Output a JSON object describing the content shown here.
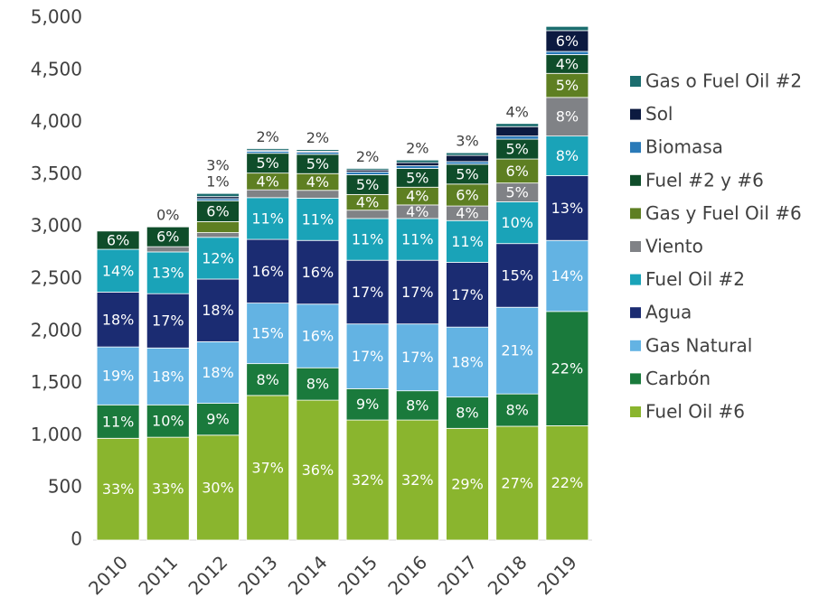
{
  "chart_data": {
    "type": "stacked_bar",
    "categories": [
      "2010",
      "2011",
      "2012",
      "2013",
      "2014",
      "2015",
      "2016",
      "2017",
      "2018",
      "2019"
    ],
    "ylim": [
      0,
      5000
    ],
    "yticks": [
      0,
      500,
      {
        "value": 1000,
        "label": "1,000"
      },
      {
        "value": 1500,
        "label": "1,500"
      },
      {
        "value": 2000,
        "label": "2,000"
      },
      {
        "value": 2500,
        "label": "2,500"
      },
      {
        "value": 3000,
        "label": "3,000"
      },
      {
        "value": 3500,
        "label": "3,500"
      },
      {
        "value": 4000,
        "label": "4,000"
      },
      {
        "value": 4500,
        "label": "4,500"
      },
      {
        "value": 5000,
        "label": "5,000"
      }
    ],
    "grid": false,
    "legend": "right",
    "series": [
      {
        "name": "Fuel Oil #6",
        "color": "#8ab52e",
        "values": [
          975,
          985,
          1005,
          1385,
          1340,
          1150,
          1150,
          1070,
          1090,
          1095
        ],
        "share_labels": [
          "33%",
          "33%",
          "30%",
          "37%",
          "36%",
          "32%",
          "32%",
          "29%",
          "27%",
          "22%"
        ]
      },
      {
        "name": "Carbón",
        "color": "#1a7a3c",
        "values": [
          320,
          310,
          305,
          305,
          310,
          300,
          280,
          300,
          310,
          1095
        ],
        "share_labels": [
          "11%",
          "10%",
          "9%",
          "8%",
          "8%",
          "9%",
          "8%",
          "8%",
          "8%",
          "22%"
        ]
      },
      {
        "name": "Gas Natural",
        "color": "#63b3e3",
        "values": [
          555,
          545,
          590,
          580,
          610,
          620,
          640,
          670,
          830,
          680
        ],
        "share_labels": [
          "19%",
          "18%",
          "18%",
          "15%",
          "16%",
          "17%",
          "17%",
          "18%",
          "21%",
          "14%"
        ]
      },
      {
        "name": "Agua",
        "color": "#1b2c72",
        "values": [
          525,
          520,
          600,
          610,
          610,
          610,
          610,
          620,
          610,
          620
        ],
        "share_labels": [
          "18%",
          "17%",
          "18%",
          "16%",
          "16%",
          "17%",
          "17%",
          "17%",
          "15%",
          "13%"
        ]
      },
      {
        "name": "Fuel Oil #2",
        "color": "#1aa3b8",
        "values": [
          410,
          400,
          400,
          400,
          405,
          400,
          400,
          400,
          400,
          380
        ],
        "share_labels": [
          "14%",
          "13%",
          "12%",
          "11%",
          "11%",
          "11%",
          "11%",
          "11%",
          "10%",
          "8%"
        ]
      },
      {
        "name": "Viento",
        "color": "#808286",
        "values": [
          null,
          50,
          45,
          75,
          75,
          80,
          130,
          140,
          180,
          370
        ],
        "share_labels": [
          null,
          "0%",
          "1%",
          "2%",
          "2%",
          "2%",
          "4%",
          "4%",
          "5%",
          "8%"
        ]
      },
      {
        "name": "Gas y Fuel Oil #6",
        "color": "#5e7f22",
        "values": [
          null,
          null,
          105,
          160,
          160,
          150,
          170,
          210,
          230,
          230
        ],
        "share_labels": [
          null,
          null,
          "3%",
          "4%",
          "4%",
          "4%",
          "4%",
          "6%",
          "6%",
          "5%"
        ]
      },
      {
        "name": "Fuel #2 y #6",
        "color": "#0f4d2a",
        "values": [
          175,
          190,
          200,
          190,
          185,
          190,
          180,
          190,
          190,
          180
        ],
        "share_labels": [
          "6%",
          "6%",
          "6%",
          "5%",
          "5%",
          "5%",
          "5%",
          "5%",
          "5%",
          "4%"
        ]
      },
      {
        "name": "Biomasa",
        "color": "#2a7ab8",
        "values": [
          null,
          null,
          20,
          20,
          20,
          25,
          25,
          25,
          30,
          30
        ],
        "share_labels": [
          null,
          null,
          null,
          null,
          null,
          null,
          null,
          null,
          null,
          null
        ]
      },
      {
        "name": "Sol",
        "color": "#0c1a40",
        "values": [
          null,
          null,
          20,
          10,
          10,
          20,
          30,
          60,
          90,
          200
        ],
        "share_labels": [
          null,
          null,
          null,
          null,
          null,
          null,
          "2%",
          "3%",
          "4%",
          "6%"
        ]
      },
      {
        "name": "Gas o Fuel Oil #2",
        "color": "#1b6d6e",
        "values": [
          null,
          null,
          30,
          15,
          15,
          15,
          25,
          25,
          30,
          40
        ],
        "share_labels": [
          null,
          null,
          null,
          null,
          null,
          null,
          null,
          null,
          null,
          null
        ]
      }
    ]
  }
}
